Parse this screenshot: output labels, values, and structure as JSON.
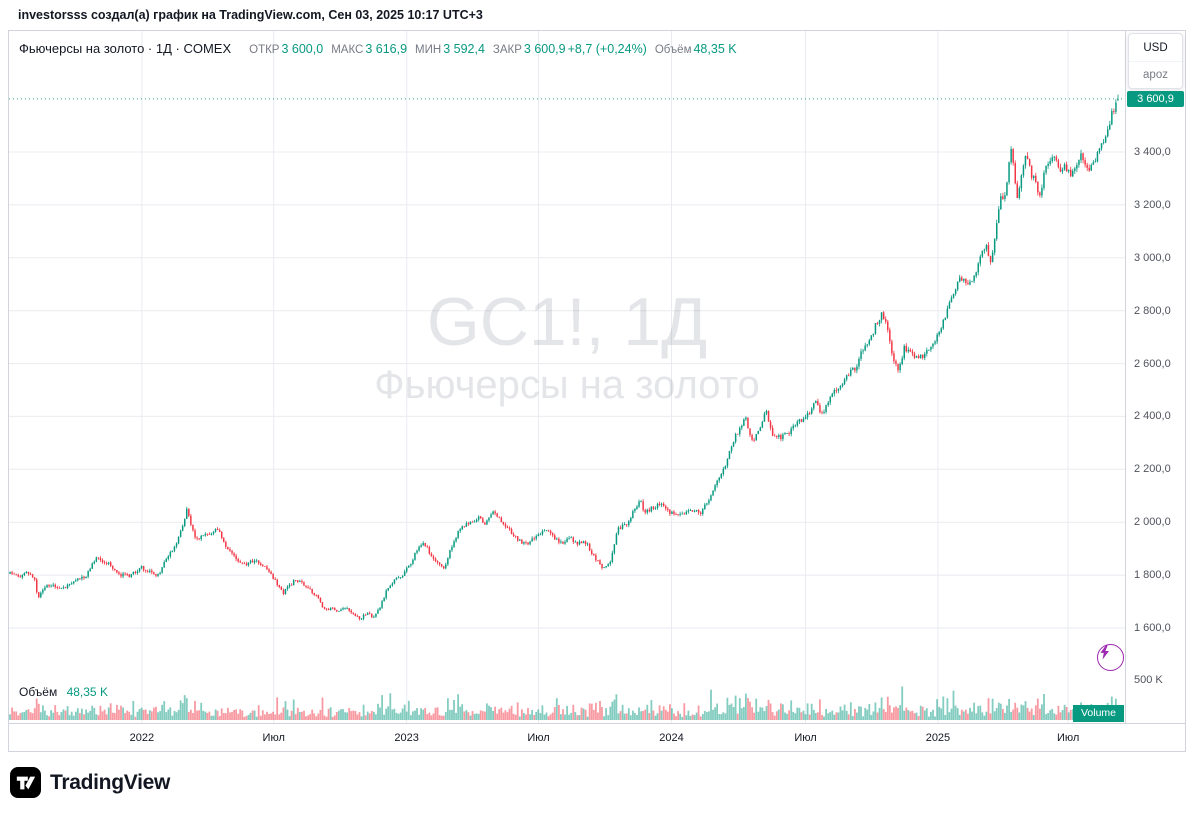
{
  "attribution": "investorsss создал(а) график на TradingView.com, Сен 03, 2025 10:17 UTC+3",
  "legend": {
    "title": "Фьючерсы на золото · 1Д · COMEX",
    "open_label": "ОТКР",
    "open": "3 600,0",
    "high_label": "МАКС",
    "high": "3 616,9",
    "low_label": "МИН",
    "low": "3 592,4",
    "close_label": "ЗАКР",
    "close": "3 600,9",
    "change": "+8,7 (+0,24%)",
    "volume_label": "Объём",
    "volume": "48,35 K"
  },
  "watermark": {
    "line1": "GC1!, 1Д",
    "line2": "Фьючерсы на золото"
  },
  "price_scale": {
    "currency": "USD",
    "unit": "apoz",
    "last_price_chip": "3 600,9",
    "volume_tick": "500 K",
    "ticks": [
      {
        "label": "3 400,0",
        "price": 3400
      },
      {
        "label": "3 200,0",
        "price": 3200
      },
      {
        "label": "3 000,0",
        "price": 3000
      },
      {
        "label": "2 800,0",
        "price": 2800
      },
      {
        "label": "2 600,0",
        "price": 2600
      },
      {
        "label": "2 400,0",
        "price": 2400
      },
      {
        "label": "2 200,0",
        "price": 2200
      },
      {
        "label": "2 000,0",
        "price": 2000
      },
      {
        "label": "1 800,0",
        "price": 1800
      },
      {
        "label": "1 600,0",
        "price": 1600
      }
    ]
  },
  "volume_pane": {
    "label": "Объём",
    "value": "48,35 K",
    "badge": "Volume"
  },
  "footer": {
    "brand": "TradingView"
  },
  "icons": {
    "lightning": "⚡",
    "logo": "tradingview-mark"
  },
  "colors": {
    "up": "#089981",
    "down": "#f23645",
    "grid": "#e9ebf0",
    "chip": "#089981",
    "purple": "#9c27b0",
    "watermark": "rgba(105,110,125,0.18)"
  },
  "chart_data": {
    "type": "candlestick",
    "symbol": "GC1!",
    "title": "Фьючерсы на золото",
    "interval": "1Д",
    "exchange": "COMEX",
    "last": {
      "open": 3600.0,
      "high": 3616.9,
      "low": 3592.4,
      "close": 3600.9,
      "change": 8.7,
      "change_pct": 0.24,
      "volume_label": "48,35 K"
    },
    "y_axis": {
      "min": 1550,
      "max": 3700,
      "ticks": [
        1600,
        1800,
        2000,
        2200,
        2400,
        2600,
        2800,
        3000,
        3200,
        3400
      ],
      "unit": "USD"
    },
    "volume_axis": {
      "tick_value": 500000,
      "tick_label": "500 K"
    },
    "x_ticks": [
      {
        "label": "2022",
        "f": 0.119
      },
      {
        "label": "Июл",
        "f": 0.238
      },
      {
        "label": "2023",
        "f": 0.358
      },
      {
        "label": "Июл",
        "f": 0.477
      },
      {
        "label": "2024",
        "f": 0.597
      },
      {
        "label": "Июл",
        "f": 0.718
      },
      {
        "label": "2025",
        "f": 0.8375
      },
      {
        "label": "Июл",
        "f": 0.955
      }
    ],
    "candle_count": 540,
    "price_path": [
      [
        0.0,
        1805
      ],
      [
        0.008,
        1795
      ],
      [
        0.016,
        1812
      ],
      [
        0.022,
        1790
      ],
      [
        0.025,
        1705
      ],
      [
        0.029,
        1750
      ],
      [
        0.038,
        1762
      ],
      [
        0.048,
        1752
      ],
      [
        0.058,
        1780
      ],
      [
        0.068,
        1795
      ],
      [
        0.078,
        1862
      ],
      [
        0.088,
        1848
      ],
      [
        0.096,
        1805
      ],
      [
        0.106,
        1795
      ],
      [
        0.113,
        1810
      ],
      [
        0.119,
        1828
      ],
      [
        0.126,
        1812
      ],
      [
        0.133,
        1798
      ],
      [
        0.141,
        1858
      ],
      [
        0.149,
        1905
      ],
      [
        0.156,
        1988
      ],
      [
        0.16,
        2058
      ],
      [
        0.163,
        2000
      ],
      [
        0.168,
        1930
      ],
      [
        0.174,
        1945
      ],
      [
        0.181,
        1958
      ],
      [
        0.187,
        1978
      ],
      [
        0.194,
        1915
      ],
      [
        0.2,
        1880
      ],
      [
        0.207,
        1852
      ],
      [
        0.213,
        1842
      ],
      [
        0.22,
        1855
      ],
      [
        0.227,
        1838
      ],
      [
        0.234,
        1810
      ],
      [
        0.24,
        1772
      ],
      [
        0.246,
        1730
      ],
      [
        0.252,
        1758
      ],
      [
        0.258,
        1782
      ],
      [
        0.264,
        1772
      ],
      [
        0.271,
        1742
      ],
      [
        0.278,
        1712
      ],
      [
        0.284,
        1668
      ],
      [
        0.291,
        1672
      ],
      [
        0.297,
        1660
      ],
      [
        0.303,
        1682
      ],
      [
        0.31,
        1655
      ],
      [
        0.316,
        1635
      ],
      [
        0.322,
        1655
      ],
      [
        0.328,
        1642
      ],
      [
        0.334,
        1682
      ],
      [
        0.341,
        1752
      ],
      [
        0.348,
        1782
      ],
      [
        0.355,
        1805
      ],
      [
        0.361,
        1842
      ],
      [
        0.368,
        1902
      ],
      [
        0.374,
        1922
      ],
      [
        0.38,
        1872
      ],
      [
        0.386,
        1842
      ],
      [
        0.392,
        1832
      ],
      [
        0.399,
        1912
      ],
      [
        0.406,
        1972
      ],
      [
        0.412,
        1992
      ],
      [
        0.418,
        2002
      ],
      [
        0.424,
        2018
      ],
      [
        0.429,
        1992
      ],
      [
        0.435,
        2042
      ],
      [
        0.441,
        2022
      ],
      [
        0.447,
        1982
      ],
      [
        0.453,
        1962
      ],
      [
        0.459,
        1932
      ],
      [
        0.465,
        1918
      ],
      [
        0.471,
        1932
      ],
      [
        0.477,
        1958
      ],
      [
        0.484,
        1968
      ],
      [
        0.491,
        1942
      ],
      [
        0.498,
        1918
      ],
      [
        0.505,
        1942
      ],
      [
        0.512,
        1922
      ],
      [
        0.519,
        1928
      ],
      [
        0.527,
        1872
      ],
      [
        0.534,
        1832
      ],
      [
        0.541,
        1842
      ],
      [
        0.549,
        1978
      ],
      [
        0.556,
        1992
      ],
      [
        0.563,
        2042
      ],
      [
        0.569,
        2088
      ],
      [
        0.572,
        2042
      ],
      [
        0.579,
        2052
      ],
      [
        0.587,
        2068
      ],
      [
        0.594,
        2042
      ],
      [
        0.602,
        2028
      ],
      [
        0.61,
        2038
      ],
      [
        0.617,
        2042
      ],
      [
        0.624,
        2036
      ],
      [
        0.631,
        2088
      ],
      [
        0.638,
        2162
      ],
      [
        0.645,
        2202
      ],
      [
        0.652,
        2302
      ],
      [
        0.658,
        2352
      ],
      [
        0.664,
        2392
      ],
      [
        0.67,
        2302
      ],
      [
        0.676,
        2342
      ],
      [
        0.682,
        2428
      ],
      [
        0.688,
        2332
      ],
      [
        0.695,
        2322
      ],
      [
        0.702,
        2332
      ],
      [
        0.709,
        2368
      ],
      [
        0.715,
        2392
      ],
      [
        0.721,
        2412
      ],
      [
        0.727,
        2468
      ],
      [
        0.732,
        2402
      ],
      [
        0.738,
        2452
      ],
      [
        0.744,
        2502
      ],
      [
        0.751,
        2522
      ],
      [
        0.757,
        2562
      ],
      [
        0.763,
        2582
      ],
      [
        0.769,
        2652
      ],
      [
        0.775,
        2672
      ],
      [
        0.781,
        2742
      ],
      [
        0.787,
        2792
      ],
      [
        0.791,
        2752
      ],
      [
        0.797,
        2622
      ],
      [
        0.802,
        2572
      ],
      [
        0.807,
        2662
      ],
      [
        0.812,
        2642
      ],
      [
        0.818,
        2618
      ],
      [
        0.825,
        2632
      ],
      [
        0.832,
        2662
      ],
      [
        0.838,
        2718
      ],
      [
        0.845,
        2792
      ],
      [
        0.851,
        2862
      ],
      [
        0.857,
        2922
      ],
      [
        0.863,
        2902
      ],
      [
        0.869,
        2912
      ],
      [
        0.875,
        2988
      ],
      [
        0.881,
        3052
      ],
      [
        0.885,
        2988
      ],
      [
        0.889,
        3082
      ],
      [
        0.894,
        3222
      ],
      [
        0.899,
        3238
      ],
      [
        0.903,
        3422
      ],
      [
        0.906,
        3332
      ],
      [
        0.909,
        3232
      ],
      [
        0.913,
        3312
      ],
      [
        0.917,
        3402
      ],
      [
        0.921,
        3322
      ],
      [
        0.925,
        3292
      ],
      [
        0.929,
        3212
      ],
      [
        0.933,
        3322
      ],
      [
        0.937,
        3352
      ],
      [
        0.942,
        3382
      ],
      [
        0.947,
        3332
      ],
      [
        0.952,
        3342
      ],
      [
        0.957,
        3312
      ],
      [
        0.962,
        3352
      ],
      [
        0.967,
        3392
      ],
      [
        0.971,
        3332
      ],
      [
        0.975,
        3342
      ],
      [
        0.979,
        3372
      ],
      [
        0.983,
        3402
      ],
      [
        0.987,
        3442
      ],
      [
        0.991,
        3482
      ],
      [
        0.995,
        3552
      ],
      [
        1.0,
        3600.9
      ]
    ]
  }
}
